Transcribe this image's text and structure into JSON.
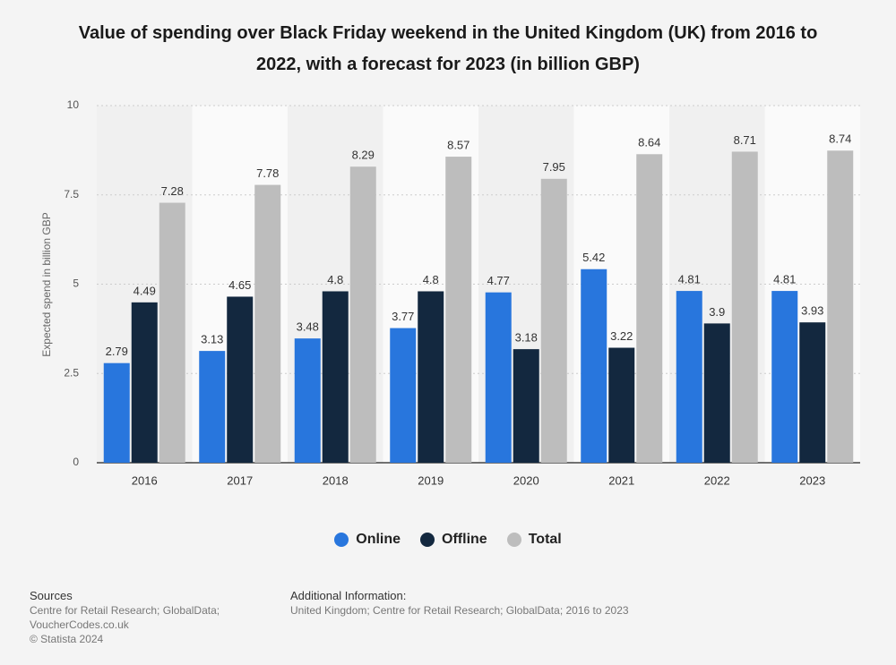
{
  "chart_data": {
    "type": "bar",
    "title": "Value of spending over Black Friday weekend in the United Kingdom (UK) from 2016 to 2022, with a forecast for 2023 (in billion GBP)",
    "y_label": "Expected spend in billion GBP",
    "categories": [
      "2016",
      "2017",
      "2018",
      "2019",
      "2020",
      "2021",
      "2022",
      "2023"
    ],
    "series": [
      {
        "name": "Online",
        "color": "#2876dd",
        "values": [
          2.79,
          3.13,
          3.48,
          3.77,
          4.77,
          5.42,
          4.81,
          4.81
        ]
      },
      {
        "name": "Offline",
        "color": "#13283f",
        "values": [
          4.49,
          4.65,
          4.8,
          4.8,
          3.18,
          3.22,
          3.9,
          3.93
        ]
      },
      {
        "name": "Total",
        "color": "#bdbdbd",
        "values": [
          7.28,
          7.78,
          8.29,
          8.57,
          7.95,
          8.64,
          8.71,
          8.74
        ]
      }
    ],
    "ylim": [
      0,
      10
    ],
    "yticks": [
      0,
      2.5,
      5,
      7.5,
      10
    ],
    "grid": true,
    "legend": "bottom"
  },
  "footer": {
    "sources_title": "Sources",
    "sources": [
      "Centre for Retail Research; GlobalData;",
      "VoucherCodes.co.uk"
    ],
    "copyright": "© Statista 2024",
    "additional_title": "Additional Information:",
    "additional": "United Kingdom; Centre for Retail Research; GlobalData; 2016 to 2023"
  }
}
